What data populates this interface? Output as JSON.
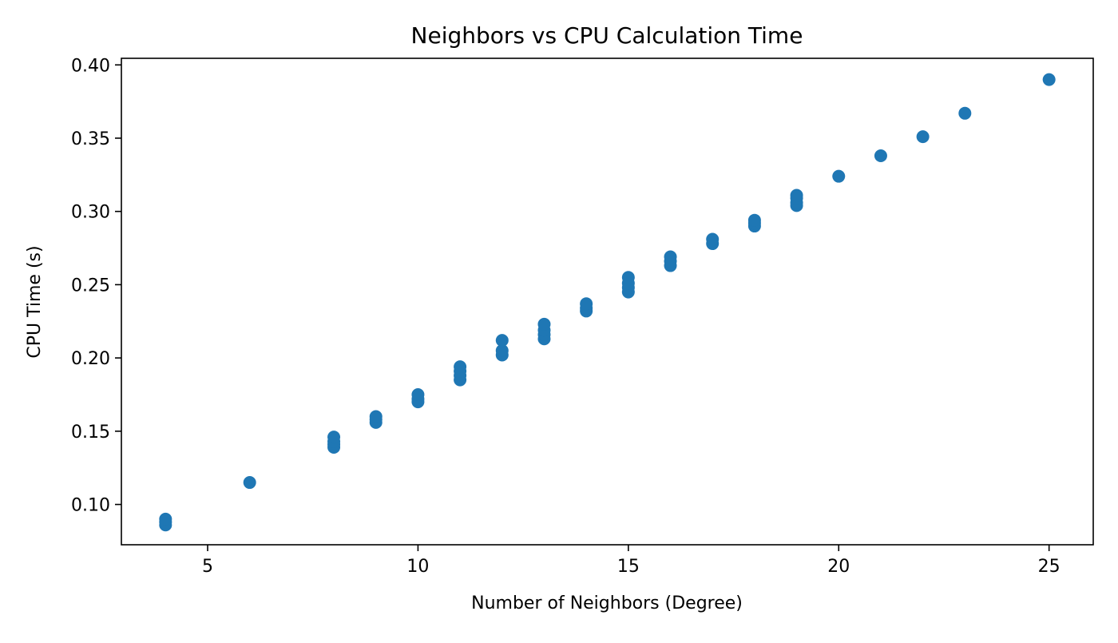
{
  "chart_data": {
    "type": "scatter",
    "title": "Neighbors vs CPU Calculation Time",
    "xlabel": "Number of Neighbors (Degree)",
    "ylabel": "CPU Time (s)",
    "xlim": [
      2.95,
      26.05
    ],
    "ylim": [
      0.0725,
      0.4045
    ],
    "xticks": [
      5,
      10,
      15,
      20,
      25
    ],
    "xtick_labels": [
      "5",
      "10",
      "15",
      "20",
      "25"
    ],
    "yticks": [
      0.1,
      0.15,
      0.2,
      0.25,
      0.3,
      0.35,
      0.4
    ],
    "ytick_labels": [
      "0.10",
      "0.15",
      "0.20",
      "0.25",
      "0.30",
      "0.35",
      "0.40"
    ],
    "grid": false,
    "legend": "none",
    "marker_color": "#1f77b4",
    "points": [
      {
        "x": 4,
        "y": 0.086
      },
      {
        "x": 4,
        "y": 0.088
      },
      {
        "x": 4,
        "y": 0.09
      },
      {
        "x": 6,
        "y": 0.115
      },
      {
        "x": 8,
        "y": 0.139
      },
      {
        "x": 8,
        "y": 0.141
      },
      {
        "x": 8,
        "y": 0.143
      },
      {
        "x": 8,
        "y": 0.146
      },
      {
        "x": 9,
        "y": 0.156
      },
      {
        "x": 9,
        "y": 0.158
      },
      {
        "x": 9,
        "y": 0.16
      },
      {
        "x": 10,
        "y": 0.17
      },
      {
        "x": 10,
        "y": 0.172
      },
      {
        "x": 10,
        "y": 0.175
      },
      {
        "x": 11,
        "y": 0.185
      },
      {
        "x": 11,
        "y": 0.188
      },
      {
        "x": 11,
        "y": 0.191
      },
      {
        "x": 11,
        "y": 0.194
      },
      {
        "x": 12,
        "y": 0.202
      },
      {
        "x": 12,
        "y": 0.205
      },
      {
        "x": 12,
        "y": 0.212
      },
      {
        "x": 13,
        "y": 0.213
      },
      {
        "x": 13,
        "y": 0.216
      },
      {
        "x": 13,
        "y": 0.219
      },
      {
        "x": 13,
        "y": 0.223
      },
      {
        "x": 14,
        "y": 0.232
      },
      {
        "x": 14,
        "y": 0.234
      },
      {
        "x": 14,
        "y": 0.237
      },
      {
        "x": 15,
        "y": 0.245
      },
      {
        "x": 15,
        "y": 0.248
      },
      {
        "x": 15,
        "y": 0.251
      },
      {
        "x": 15,
        "y": 0.255
      },
      {
        "x": 16,
        "y": 0.263
      },
      {
        "x": 16,
        "y": 0.266
      },
      {
        "x": 16,
        "y": 0.269
      },
      {
        "x": 17,
        "y": 0.278
      },
      {
        "x": 17,
        "y": 0.281
      },
      {
        "x": 18,
        "y": 0.29
      },
      {
        "x": 18,
        "y": 0.292
      },
      {
        "x": 18,
        "y": 0.294
      },
      {
        "x": 19,
        "y": 0.304
      },
      {
        "x": 19,
        "y": 0.306
      },
      {
        "x": 19,
        "y": 0.309
      },
      {
        "x": 19,
        "y": 0.311
      },
      {
        "x": 20,
        "y": 0.324
      },
      {
        "x": 21,
        "y": 0.338
      },
      {
        "x": 22,
        "y": 0.351
      },
      {
        "x": 23,
        "y": 0.367
      },
      {
        "x": 25,
        "y": 0.39
      }
    ]
  }
}
